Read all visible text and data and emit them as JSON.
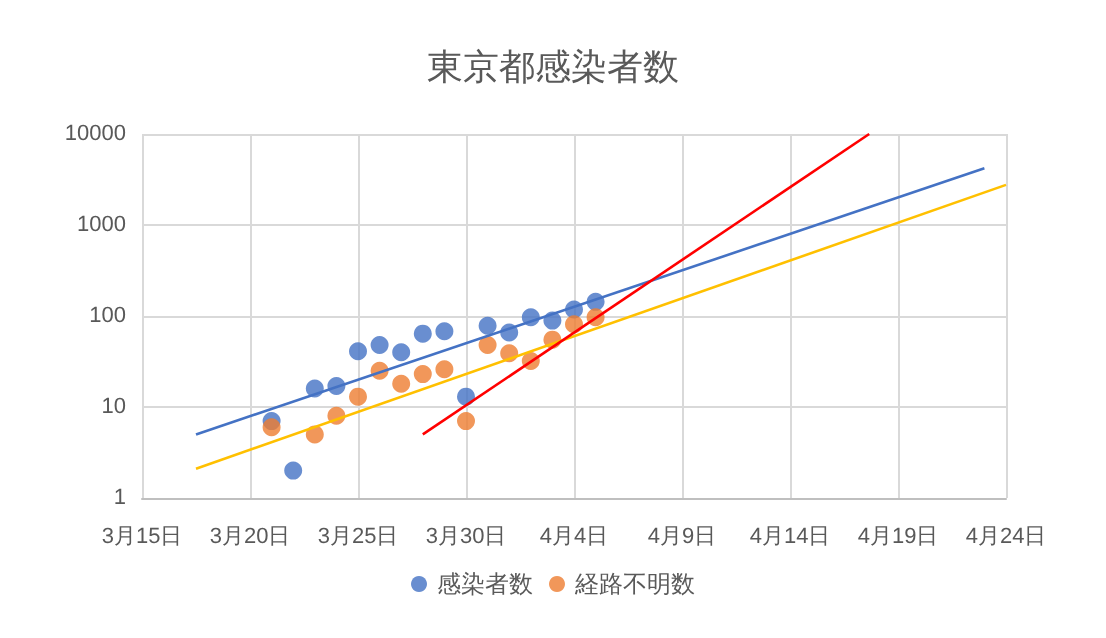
{
  "chart_data": {
    "type": "scatter",
    "title": "東京都感染者数",
    "x": [
      "--03-21",
      "--03-22",
      "--03-23",
      "--03-24",
      "--03-25",
      "--03-26",
      "--03-27",
      "--03-28",
      "--03-29",
      "--03-30",
      "--03-31",
      "--04-01",
      "--04-02",
      "--04-03",
      "--04-04",
      "--04-05"
    ],
    "series": [
      {
        "name": "感染者数",
        "color": "#4472c4",
        "values": [
          7,
          2,
          16,
          17,
          41,
          48,
          40,
          64,
          68,
          13,
          78,
          66,
          97,
          89,
          118,
          143
        ]
      },
      {
        "name": "経路不明数",
        "color": "#ed7d31",
        "x": [
          "--03-21",
          "--03-23",
          "--03-24",
          "--03-25",
          "--03-26",
          "--03-27",
          "--03-28",
          "--03-29",
          "--03-30",
          "--03-31",
          "--04-01",
          "--04-02",
          "--04-03",
          "--04-04",
          "--04-05"
        ],
        "values": [
          6,
          5,
          8,
          13,
          25,
          18,
          23,
          26,
          7,
          48,
          39,
          32,
          55,
          81,
          97
        ]
      },
      {
        "type": "line",
        "marker": "none",
        "color": "#4472c4",
        "x": [
          "--03-17T12:00",
          "--04-23"
        ],
        "values": [
          5,
          4200
        ]
      },
      {
        "type": "line",
        "marker": "none",
        "color": "#ffc000",
        "x": [
          "--03-17T12:00",
          "--04-24"
        ],
        "values": [
          2.1,
          2760
        ]
      },
      {
        "type": "line",
        "marker": "none",
        "color": "#ff0000",
        "x": [
          "--03-28",
          "--04-17T16:00"
        ],
        "values": [
          5,
          10000
        ]
      }
    ],
    "xlim": [
      "--03-15",
      "--04-24"
    ],
    "xticks": [
      {
        "value": "--03-15",
        "label": "3月15日"
      },
      {
        "value": "--03-20",
        "label": "3月20日"
      },
      {
        "value": "--03-25",
        "label": "3月25日"
      },
      {
        "value": "--03-30",
        "label": "3月30日"
      },
      {
        "value": "--04-04",
        "label": "4月4日"
      },
      {
        "value": "--04-09",
        "label": "4月9日"
      },
      {
        "value": "--04-14",
        "label": "4月14日"
      },
      {
        "value": "--04-19",
        "label": "4月19日"
      },
      {
        "value": "--04-24",
        "label": "4月24日"
      }
    ],
    "ylim": [
      1,
      10000
    ],
    "yticks": [
      1,
      10,
      100,
      1000,
      10000
    ],
    "log": "y",
    "grid": true,
    "legend": "bottom",
    "marker": "circle"
  }
}
